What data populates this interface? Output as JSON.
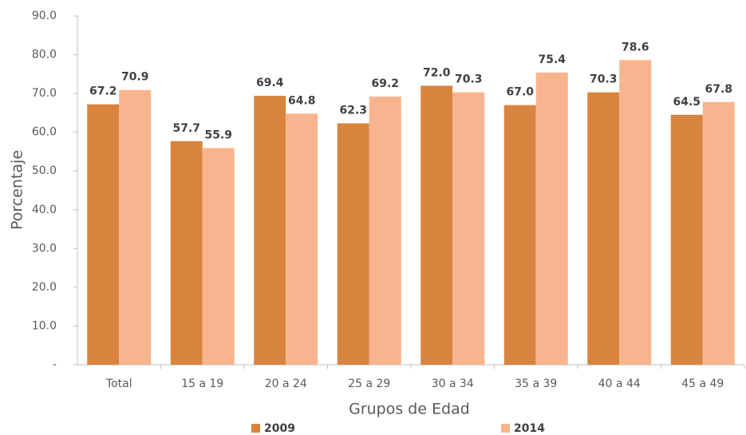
{
  "chart_data": {
    "type": "bar",
    "x_label": "Grupos de Edad",
    "y_label": "Porcentaje",
    "categories": [
      "Total",
      "15 a 19",
      "20 a 24",
      "25 a 29",
      "30 a 34",
      "35 a 39",
      "40 a 44",
      "45 a 49"
    ],
    "series": [
      {
        "name": "2009",
        "color": "#d9843e",
        "values": [
          67.2,
          57.7,
          69.4,
          62.3,
          72.0,
          67.0,
          70.3,
          64.5
        ],
        "value_labels": [
          "67.2",
          "57.7",
          "69.4",
          "62.3",
          "72.0",
          "67.0",
          "70.3",
          "64.5"
        ]
      },
      {
        "name": "2014",
        "color": "#f8b48e",
        "values": [
          70.9,
          55.9,
          64.8,
          69.2,
          70.3,
          75.4,
          78.6,
          67.8
        ],
        "value_labels": [
          "70.9",
          "55.9",
          "64.8",
          "69.2",
          "70.3",
          "75.4",
          "78.6",
          "67.8"
        ]
      }
    ],
    "ylim": [
      0,
      90
    ],
    "yticks": [
      {
        "value": 0,
        "label": "-"
      },
      {
        "value": 10,
        "label": "10.0"
      },
      {
        "value": 20,
        "label": "20.0"
      },
      {
        "value": 30,
        "label": "30.0"
      },
      {
        "value": 40,
        "label": "40.0"
      },
      {
        "value": 50,
        "label": "50.0"
      },
      {
        "value": 60,
        "label": "60.0"
      },
      {
        "value": 70,
        "label": "70.0"
      },
      {
        "value": 80,
        "label": "80.0"
      },
      {
        "value": 90,
        "label": "90.0"
      }
    ],
    "grid": false,
    "legend": "bottom"
  }
}
